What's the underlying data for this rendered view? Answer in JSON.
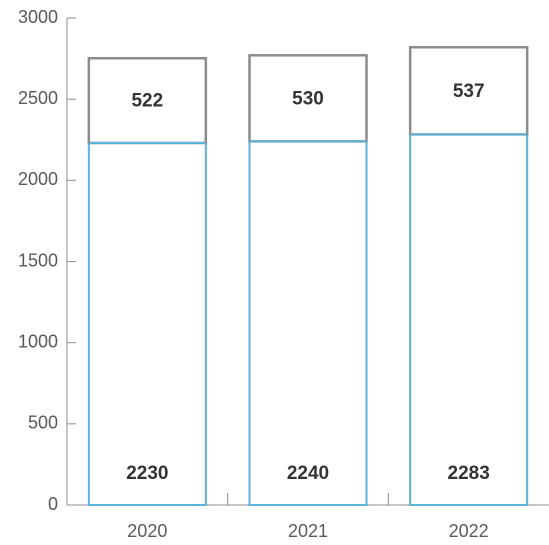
{
  "chart_data": {
    "type": "bar",
    "stacked": true,
    "title": "",
    "xlabel": "",
    "ylabel": "",
    "categories": [
      "2020",
      "2021",
      "2022"
    ],
    "ylim": [
      0,
      3000
    ],
    "yticks": [
      0,
      500,
      1000,
      1500,
      2000,
      2500,
      3000
    ],
    "grid": false,
    "legend": "none",
    "series": [
      {
        "values": [
          2230,
          2240,
          2283
        ],
        "color": "#5BB3D9"
      },
      {
        "values": [
          522,
          530,
          537
        ],
        "color": "#8C8C8C"
      }
    ]
  }
}
